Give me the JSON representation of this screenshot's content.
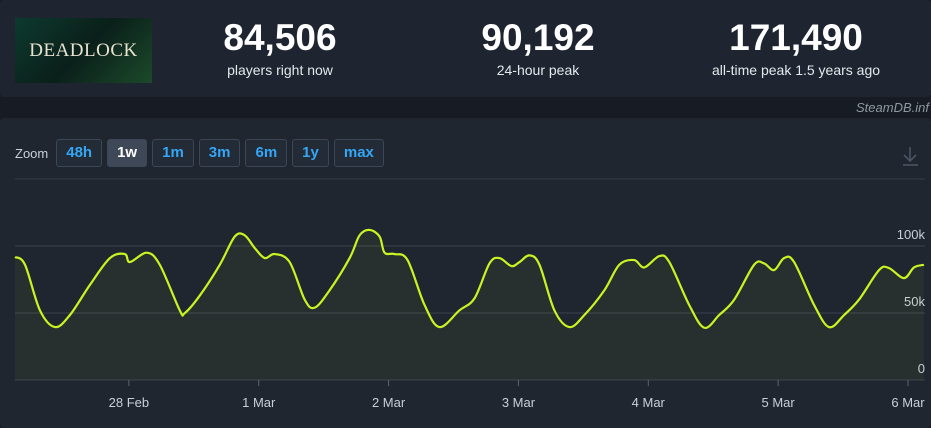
{
  "header": {
    "logo": "DEADLOCK",
    "stats": [
      {
        "value": "84,506",
        "label": "players right now"
      },
      {
        "value": "90,192",
        "label": "24-hour peak"
      },
      {
        "value": "171,490",
        "label": "all-time peak 1.5 years ago"
      }
    ],
    "source": "SteamDB.inf"
  },
  "zoom": {
    "label": "Zoom",
    "options": [
      "48h",
      "1w",
      "1m",
      "3m",
      "6m",
      "1y",
      "max"
    ],
    "active": 1
  },
  "chart_data": {
    "type": "line",
    "color": "#c8f522",
    "grid": true,
    "x": [
      58.123,
      58.2,
      58.315,
      58.431,
      58.546,
      58.7,
      58.854,
      58.969,
      59.008,
      59.138,
      59.238,
      59.392,
      59.431,
      59.546,
      59.7,
      59.815,
      59.892,
      59.969,
      60.046,
      60.123,
      60.238,
      60.354,
      60.431,
      60.546,
      60.7,
      60.777,
      60.854,
      60.931,
      60.969,
      61.046,
      61.146,
      61.277,
      61.392,
      61.546,
      61.662,
      61.777,
      61.854,
      61.946,
      62.008,
      62.085,
      62.162,
      62.277,
      62.392,
      62.508,
      62.662,
      62.777,
      62.892,
      62.969,
      63.085,
      63.162,
      63.315,
      63.431,
      63.546,
      63.662,
      63.815,
      63.892,
      63.969,
      64.046,
      64.123,
      64.277,
      64.392,
      64.508,
      64.623,
      64.777,
      64.854,
      64.969,
      65.046,
      65.123
    ],
    "values": [
      91800,
      86000,
      52000,
      39500,
      48500,
      71000,
      91000,
      94000,
      88000,
      95000,
      86000,
      52000,
      50000,
      63000,
      86000,
      107000,
      108000,
      98500,
      91000,
      94000,
      88000,
      60000,
      54000,
      67000,
      91000,
      108000,
      112000,
      107000,
      95000,
      94000,
      89500,
      56000,
      39500,
      52000,
      61000,
      87000,
      91000,
      85000,
      88000,
      93000,
      86000,
      52000,
      39500,
      48500,
      67000,
      86000,
      89500,
      84000,
      92500,
      88000,
      56000,
      39000,
      48500,
      60000,
      86000,
      87000,
      82000,
      91000,
      88000,
      56000,
      39500,
      48500,
      60000,
      82000,
      83500,
      76000,
      84000,
      86000
    ],
    "xlim": [
      58.123,
      65.131
    ],
    "xticks": [
      {
        "value": 59,
        "label": "28 Feb"
      },
      {
        "value": 60,
        "label": "1 Mar"
      },
      {
        "value": 61,
        "label": "2 Mar"
      },
      {
        "value": 62,
        "label": "3 Mar"
      },
      {
        "value": 63,
        "label": "4 Mar"
      },
      {
        "value": 64,
        "label": "5 Mar"
      },
      {
        "value": 65,
        "label": "6 Mar"
      }
    ],
    "ylim": [
      0,
      150000
    ],
    "yticks": [
      0,
      {
        "value": 50000,
        "label": "50k"
      },
      {
        "value": 100000,
        "label": "100k"
      }
    ]
  }
}
